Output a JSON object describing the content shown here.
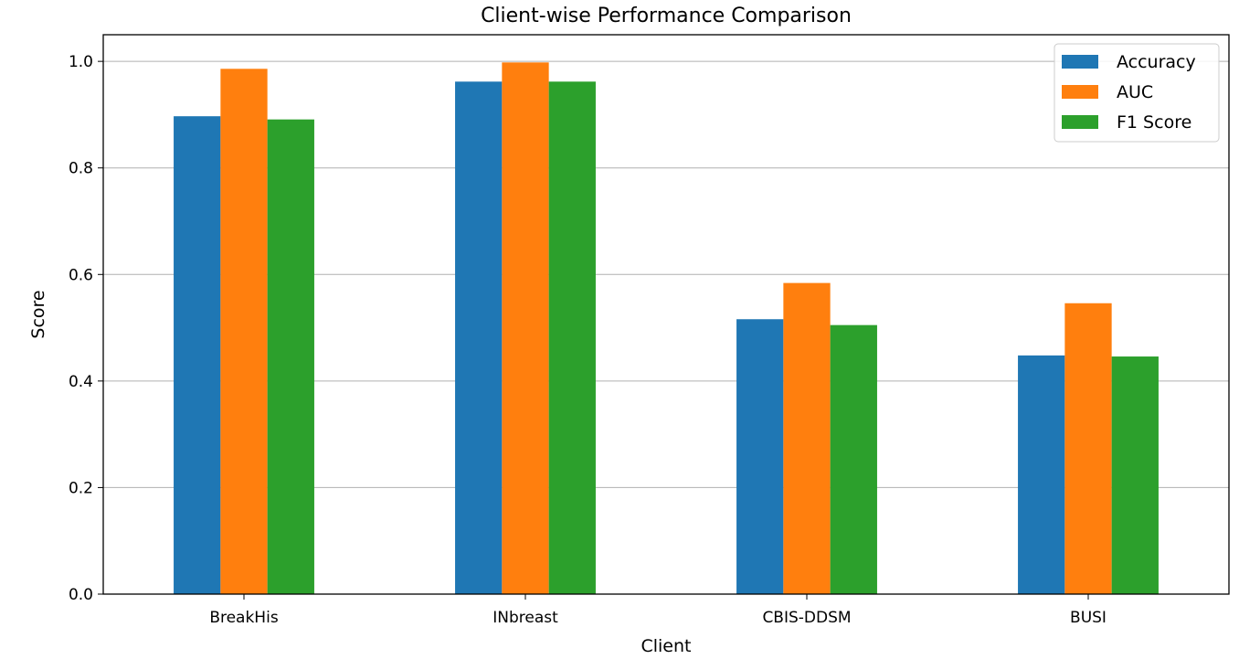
{
  "chart_data": {
    "type": "bar",
    "title": "Client-wise Performance Comparison",
    "xlabel": "Client",
    "ylabel": "Score",
    "categories": [
      "BreakHis",
      "INbreast",
      "CBIS-DDSM",
      "BUSI"
    ],
    "series": [
      {
        "name": "Accuracy",
        "color": "#1f77b4",
        "values": [
          0.897,
          0.962,
          0.516,
          0.448
        ]
      },
      {
        "name": "AUC",
        "color": "#ff7f0e",
        "values": [
          0.986,
          0.998,
          0.584,
          0.546
        ]
      },
      {
        "name": "F1 Score",
        "color": "#2ca02c",
        "values": [
          0.891,
          0.962,
          0.505,
          0.446
        ]
      }
    ],
    "ylim": [
      0,
      1.05
    ],
    "yticks": [
      "0.0",
      "0.2",
      "0.4",
      "0.6",
      "0.8",
      "1.0"
    ],
    "grid": "y",
    "legend_position": "upper right"
  }
}
